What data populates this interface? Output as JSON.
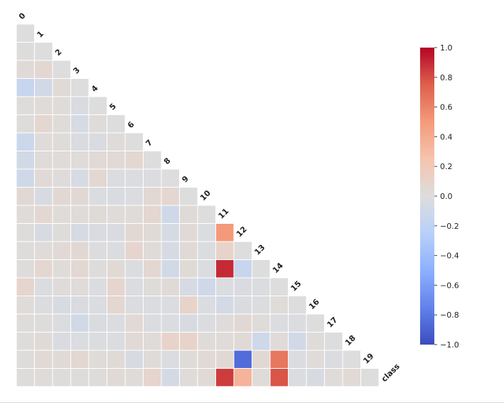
{
  "chart_data": {
    "type": "heatmap",
    "subtype": "lower-triangle correlation matrix",
    "labels": [
      "0",
      "1",
      "2",
      "3",
      "4",
      "5",
      "6",
      "7",
      "8",
      "9",
      "10",
      "11",
      "12",
      "13",
      "14",
      "15",
      "16",
      "17",
      "18",
      "19",
      "class"
    ],
    "colormap": "coolwarm",
    "vmin": -1.0,
    "vmax": 1.0,
    "colorbar_ticks": [
      "1.0",
      "0.8",
      "0.6",
      "0.4",
      "0.2",
      "0.0",
      "−0.2",
      "−0.4",
      "−0.6",
      "−0.8",
      "−1.0"
    ],
    "colorbar_tick_values": [
      1.0,
      0.8,
      0.6,
      0.4,
      0.2,
      0.0,
      -0.2,
      -0.4,
      -0.6,
      -0.8,
      -1.0
    ],
    "rows": [
      [
        0
      ],
      [
        0.01,
        0
      ],
      [
        0.03,
        0.06,
        0
      ],
      [
        -0.15,
        -0.08,
        0.03,
        0
      ],
      [
        0.01,
        0.02,
        0.02,
        -0.03,
        0
      ],
      [
        0.01,
        0.07,
        0.02,
        -0.05,
        0.02,
        0
      ],
      [
        -0.12,
        0.02,
        0.02,
        -0.03,
        -0.03,
        0.02,
        0
      ],
      [
        -0.08,
        0.02,
        0.02,
        0.02,
        0.04,
        0.04,
        0.06,
        0
      ],
      [
        -0.1,
        0.04,
        0.01,
        -0.05,
        0.06,
        -0.02,
        -0.02,
        -0.02,
        0
      ],
      [
        0.05,
        -0.04,
        0.05,
        0.05,
        -0.02,
        -0.03,
        -0.02,
        0.05,
        0.07,
        0
      ],
      [
        0.02,
        0.06,
        0.02,
        0.02,
        0.03,
        0.02,
        0.02,
        0.07,
        -0.1,
        0.03,
        0
      ],
      [
        0.01,
        -0.04,
        0.01,
        -0.05,
        -0.03,
        -0.03,
        0.05,
        0.03,
        -0.05,
        0.03,
        -0.02,
        0.5
      ],
      [
        0.01,
        0.02,
        0.04,
        0.05,
        -0.01,
        -0.02,
        0.08,
        0.02,
        -0.05,
        0.03,
        -0.02,
        0.1,
        0
      ],
      [
        0.01,
        0.07,
        0.02,
        0.06,
        0.01,
        0.04,
        -0.02,
        0.06,
        -0.08,
        0.03,
        -0.02,
        0.9,
        -0.15,
        0
      ],
      [
        0.08,
        -0.02,
        0.02,
        0.02,
        -0.02,
        0.08,
        -0.02,
        0.02,
        0.03,
        -0.05,
        -0.1,
        -0.02,
        -0.03,
        -0.02,
        0
      ],
      [
        0.02,
        -0.02,
        -0.04,
        -0.03,
        -0.02,
        0.07,
        -0.02,
        -0.02,
        -0.02,
        0.1,
        -0.02,
        -0.07,
        -0.03,
        -0.02,
        0.02,
        0
      ],
      [
        0.01,
        0.01,
        -0.02,
        -0.08,
        -0.03,
        -0.02,
        0.04,
        -0.02,
        -0.02,
        -0.04,
        -0.02,
        0.02,
        0.05,
        0.02,
        -0.02,
        -0.02,
        0
      ],
      [
        0.01,
        0.03,
        -0.03,
        -0.02,
        -0.02,
        -0.02,
        0.04,
        0.02,
        0.1,
        0.1,
        0.02,
        0.02,
        0.03,
        -0.1,
        0.02,
        -0.08,
        0.02,
        0
      ],
      [
        0.01,
        0.04,
        0.03,
        0.06,
        0.02,
        0.03,
        -0.04,
        0.02,
        -0.02,
        0.02,
        0.04,
        0.05,
        -0.85,
        0.05,
        0.65,
        -0.02,
        0.02,
        -0.02,
        0
      ],
      [
        0.01,
        0.02,
        0.01,
        0.01,
        0.01,
        0.04,
        0.02,
        0.08,
        -0.06,
        0.02,
        0.04,
        0.85,
        0.35,
        0.02,
        0.78,
        -0.02,
        -0.04,
        0.02,
        0.04,
        0
      ]
    ]
  }
}
